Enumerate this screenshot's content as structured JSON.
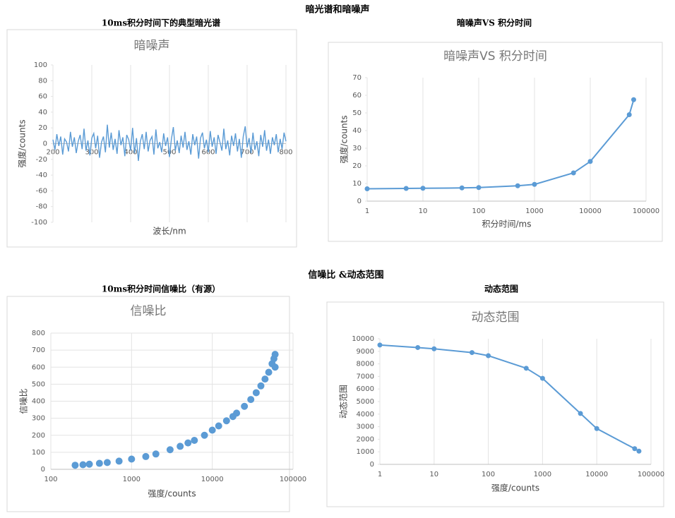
{
  "sections": [
    "暗光谱和暗噪声",
    "信噪比 &动态范围"
  ],
  "chart_data": [
    {
      "type": "line",
      "heading": "10ms积分时间下的典型暗光谱",
      "title": "暗噪声",
      "xlabel": "波长/nm",
      "ylabel": "强度/counts",
      "color": "#5b9bd5",
      "grid": "x",
      "xtick_position": "zero",
      "markers": false,
      "xlim": [
        200,
        800
      ],
      "xticks": [
        200,
        300,
        400,
        500,
        600,
        700,
        800
      ],
      "ylim": [
        -100,
        100
      ],
      "yticks": [
        -100,
        -80,
        -60,
        -40,
        -20,
        0,
        20,
        40,
        60,
        80,
        100
      ],
      "x": [
        200,
        205,
        210,
        215,
        220,
        225,
        230,
        235,
        240,
        245,
        250,
        255,
        260,
        265,
        270,
        275,
        280,
        285,
        290,
        295,
        300,
        305,
        310,
        315,
        320,
        325,
        330,
        335,
        340,
        345,
        350,
        355,
        360,
        365,
        370,
        375,
        380,
        385,
        390,
        395,
        400,
        405,
        410,
        415,
        420,
        425,
        430,
        435,
        440,
        445,
        450,
        455,
        460,
        465,
        470,
        475,
        480,
        485,
        490,
        495,
        500,
        505,
        510,
        515,
        520,
        525,
        530,
        535,
        540,
        545,
        550,
        555,
        560,
        565,
        570,
        575,
        580,
        585,
        590,
        595,
        600,
        605,
        610,
        615,
        620,
        625,
        630,
        635,
        640,
        645,
        650,
        655,
        660,
        665,
        670,
        675,
        680,
        685,
        690,
        695,
        700,
        705,
        710,
        715,
        720,
        725,
        730,
        735,
        740,
        745,
        750,
        755,
        760,
        765,
        770,
        775,
        780,
        785,
        790,
        795,
        800
      ],
      "values": [
        5,
        -8,
        12,
        -3,
        9,
        -14,
        6,
        2,
        -10,
        15,
        -4,
        8,
        -12,
        3,
        11,
        -7,
        19,
        -9,
        4,
        -15,
        7,
        13,
        -6,
        10,
        -18,
        2,
        9,
        -11,
        24,
        -5,
        14,
        -8,
        6,
        -13,
        17,
        -2,
        8,
        -16,
        11,
        5,
        -9,
        20,
        -12,
        7,
        -22,
        3,
        12,
        -7,
        15,
        -10,
        4,
        9,
        -14,
        18,
        -6,
        2,
        -11,
        13,
        -3,
        8,
        -17,
        6,
        21,
        -9,
        4,
        -12,
        10,
        -5,
        15,
        -8,
        3,
        -14,
        12,
        -2,
        9,
        -19,
        7,
        14,
        -6,
        5,
        -11,
        16,
        -4,
        8,
        -13,
        11,
        2,
        -9,
        19,
        -7,
        4,
        -15,
        10,
        -3,
        13,
        -10,
        6,
        -18,
        9,
        22,
        -5,
        7,
        -12,
        14,
        -8,
        3,
        -16,
        11,
        -4,
        17,
        -9,
        5,
        -13,
        8,
        -2,
        12,
        -11,
        6,
        -7,
        14,
        3
      ]
    },
    {
      "type": "line",
      "heading": "暗噪声VS 积分时间",
      "title": "暗噪声VS 积分时间",
      "xlabel": "积分时间/ms",
      "ylabel": "强度/counts",
      "color": "#5b9bd5",
      "grid": "x",
      "log_x": true,
      "markers": true,
      "xlim": [
        1,
        100000
      ],
      "xticks": [
        1,
        10,
        100,
        1000,
        10000,
        100000
      ],
      "ylim": [
        0,
        70
      ],
      "yticks": [
        0,
        10,
        20,
        30,
        40,
        50,
        60,
        70
      ],
      "x": [
        1,
        5,
        10,
        50,
        100,
        500,
        1000,
        5000,
        10000,
        50000,
        60000
      ],
      "values": [
        7,
        7.2,
        7.3,
        7.5,
        7.7,
        8.7,
        9.5,
        16,
        22.5,
        49,
        57.5
      ]
    },
    {
      "type": "scatter",
      "heading": "10ms积分时间信噪比（有源）",
      "title": "信噪比",
      "xlabel": "强度/counts",
      "ylabel": "信噪比",
      "color": "#5b9bd5",
      "grid": "both",
      "log_x": true,
      "xlim": [
        100,
        100000
      ],
      "xticks": [
        100,
        1000,
        10000,
        100000
      ],
      "ylim": [
        0,
        800
      ],
      "yticks": [
        0,
        100,
        200,
        300,
        400,
        500,
        600,
        700,
        800
      ],
      "x": [
        200,
        250,
        300,
        400,
        500,
        700,
        1000,
        1500,
        2000,
        3000,
        4000,
        5000,
        6000,
        8000,
        10000,
        12000,
        15000,
        18000,
        20000,
        25000,
        30000,
        35000,
        40000,
        45000,
        50000,
        55000,
        58000,
        60000,
        60000
      ],
      "values": [
        24,
        27,
        30,
        35,
        40,
        48,
        60,
        75,
        90,
        115,
        135,
        155,
        170,
        200,
        230,
        255,
        285,
        310,
        330,
        370,
        410,
        450,
        490,
        530,
        570,
        620,
        650,
        675,
        600
      ]
    },
    {
      "type": "line",
      "heading": "动态范围",
      "title": "动态范围",
      "xlabel": "强度/counts",
      "ylabel": "动态范围",
      "color": "#5b9bd5",
      "grid": "x",
      "log_x": true,
      "markers": true,
      "xlim": [
        1,
        100000
      ],
      "xticks": [
        1,
        10,
        100,
        1000,
        10000,
        100000
      ],
      "ylim": [
        0,
        10000
      ],
      "yticks": [
        0,
        1000,
        2000,
        3000,
        4000,
        5000,
        6000,
        7000,
        8000,
        9000,
        10000
      ],
      "x": [
        1,
        5,
        10,
        50,
        100,
        500,
        1000,
        5000,
        10000,
        50000,
        60000
      ],
      "values": [
        9500,
        9300,
        9200,
        8900,
        8650,
        7650,
        6850,
        4050,
        2850,
        1250,
        1050
      ]
    }
  ]
}
